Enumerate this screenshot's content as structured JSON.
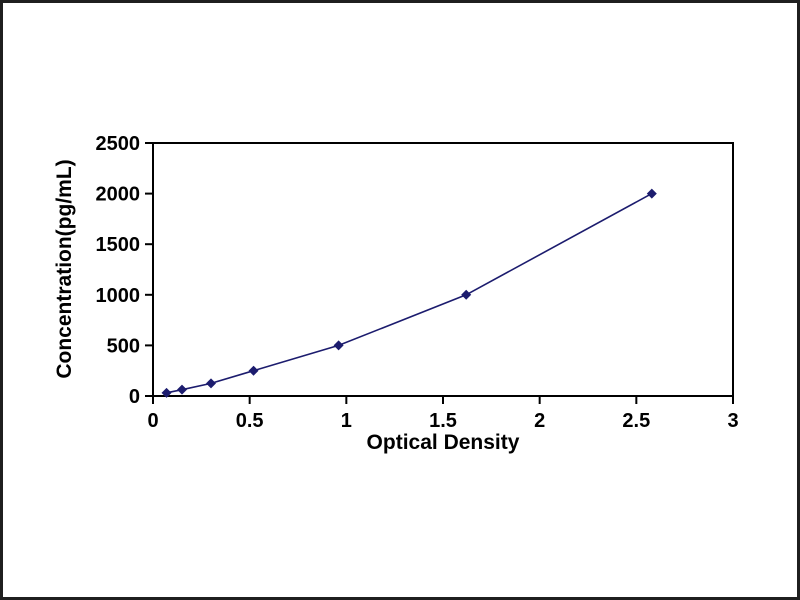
{
  "chart_data": {
    "type": "line",
    "title": "",
    "xlabel": "Optical Density",
    "ylabel": "Concentration(pg/mL)",
    "x": [
      0.07,
      0.15,
      0.3,
      0.52,
      0.96,
      1.62,
      2.58
    ],
    "y": [
      31.25,
      62.5,
      125,
      250,
      500,
      1000,
      2000
    ],
    "xlim": [
      0,
      3
    ],
    "ylim": [
      0,
      2500
    ],
    "xticks": [
      "0",
      "0.5",
      "1",
      "1.5",
      "2",
      "2.5",
      "3"
    ],
    "yticks": [
      "0",
      "500",
      "1000",
      "1500",
      "2000",
      "2500"
    ],
    "grid": false,
    "legend": false,
    "line_color": "#1c1c6e",
    "marker": "diamond",
    "marker_color": "#1c1c6e",
    "axis_color": "#000000",
    "background_color": "#ffffff"
  }
}
